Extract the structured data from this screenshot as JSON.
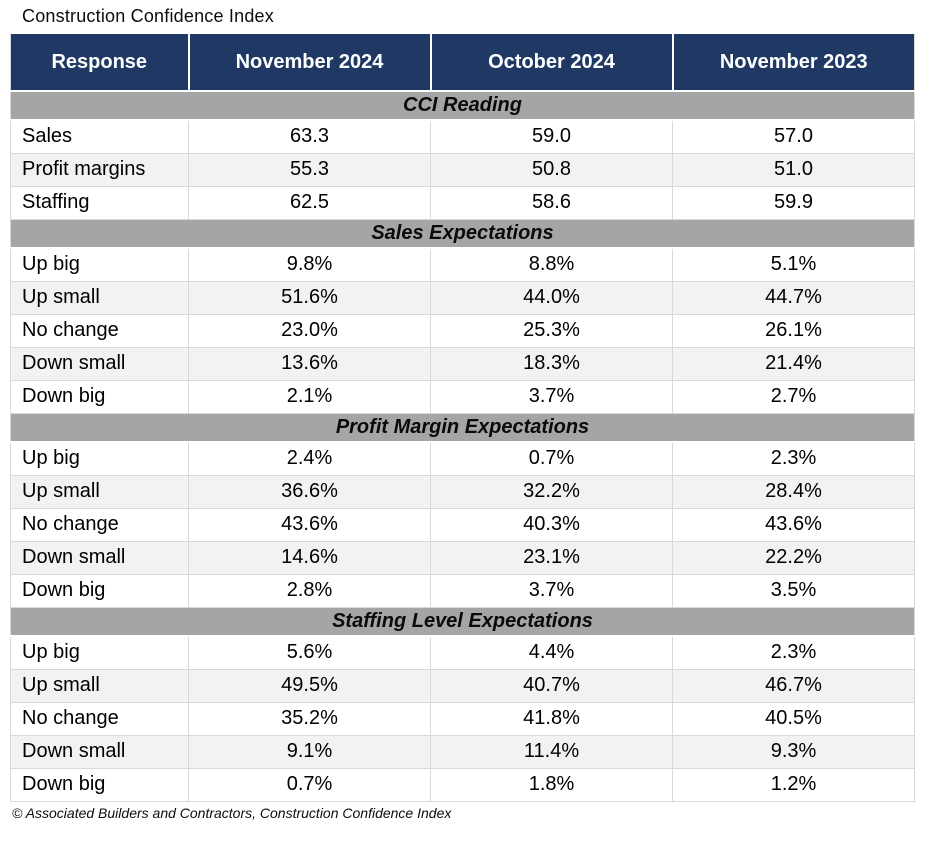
{
  "title": "Construction Confidence Index",
  "footer": "© Associated Builders and Contractors, Construction Confidence Index",
  "colors": {
    "header_bg": "#1f3864",
    "header_text": "#ffffff",
    "section_band_bg": "#a5a5a5",
    "alt_row_bg": "#f2f2f2",
    "row_border": "#d9d9d9"
  },
  "chart_data": {
    "type": "table",
    "title": "Construction Confidence Index",
    "source": "© Associated Builders and Contractors, Construction Confidence Index",
    "columns": [
      "Response",
      "November 2024",
      "October 2024",
      "November 2023"
    ],
    "sections": [
      {
        "label": "CCI Reading",
        "rows": [
          {
            "response": "Sales",
            "values": [
              "63.3",
              "59.0",
              "57.0"
            ]
          },
          {
            "response": "Profit margins",
            "values": [
              "55.3",
              "50.8",
              "51.0"
            ]
          },
          {
            "response": "Staffing",
            "values": [
              "62.5",
              "58.6",
              "59.9"
            ]
          }
        ]
      },
      {
        "label": "Sales Expectations",
        "rows": [
          {
            "response": "Up big",
            "values": [
              "9.8%",
              "8.8%",
              "5.1%"
            ]
          },
          {
            "response": "Up small",
            "values": [
              "51.6%",
              "44.0%",
              "44.7%"
            ]
          },
          {
            "response": "No change",
            "values": [
              "23.0%",
              "25.3%",
              "26.1%"
            ]
          },
          {
            "response": "Down small",
            "values": [
              "13.6%",
              "18.3%",
              "21.4%"
            ]
          },
          {
            "response": "Down big",
            "values": [
              "2.1%",
              "3.7%",
              "2.7%"
            ]
          }
        ]
      },
      {
        "label": "Profit Margin Expectations",
        "rows": [
          {
            "response": "Up big",
            "values": [
              "2.4%",
              "0.7%",
              "2.3%"
            ]
          },
          {
            "response": "Up small",
            "values": [
              "36.6%",
              "32.2%",
              "28.4%"
            ]
          },
          {
            "response": "No change",
            "values": [
              "43.6%",
              "40.3%",
              "43.6%"
            ]
          },
          {
            "response": "Down small",
            "values": [
              "14.6%",
              "23.1%",
              "22.2%"
            ]
          },
          {
            "response": "Down big",
            "values": [
              "2.8%",
              "3.7%",
              "3.5%"
            ]
          }
        ]
      },
      {
        "label": "Staffing Level Expectations",
        "rows": [
          {
            "response": "Up big",
            "values": [
              "5.6%",
              "4.4%",
              "2.3%"
            ]
          },
          {
            "response": "Up small",
            "values": [
              "49.5%",
              "40.7%",
              "46.7%"
            ]
          },
          {
            "response": "No change",
            "values": [
              "35.2%",
              "41.8%",
              "40.5%"
            ]
          },
          {
            "response": "Down small",
            "values": [
              "9.1%",
              "11.4%",
              "9.3%"
            ]
          },
          {
            "response": "Down big",
            "values": [
              "0.7%",
              "1.8%",
              "1.2%"
            ]
          }
        ]
      }
    ]
  }
}
